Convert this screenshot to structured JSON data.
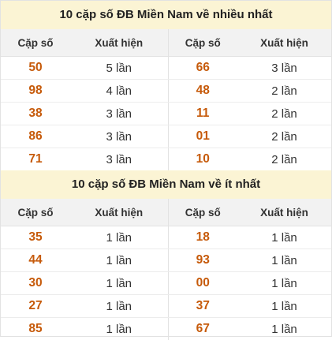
{
  "most": {
    "title": "10 cặp số ĐB Miền Nam về nhiều nhất",
    "headers": [
      "Cặp số",
      "Xuất hiện",
      "Cặp số",
      "Xuất hiện"
    ],
    "rows": [
      {
        "num_a": "50",
        "cnt_a": "5 lần",
        "num_b": "66",
        "cnt_b": "3 lần"
      },
      {
        "num_a": "98",
        "cnt_a": "4 lần",
        "num_b": "48",
        "cnt_b": "2 lần"
      },
      {
        "num_a": "38",
        "cnt_a": "3 lần",
        "num_b": "11",
        "cnt_b": "2 lần"
      },
      {
        "num_a": "86",
        "cnt_a": "3 lần",
        "num_b": "01",
        "cnt_b": "2 lần"
      },
      {
        "num_a": "71",
        "cnt_a": "3 lần",
        "num_b": "10",
        "cnt_b": "2 lần"
      }
    ]
  },
  "least": {
    "title": "10 cặp số ĐB Miền Nam về ít nhất",
    "headers": [
      "Cặp số",
      "Xuất hiện",
      "Cặp số",
      "Xuất hiện"
    ],
    "rows": [
      {
        "num_a": "35",
        "cnt_a": "1 lần",
        "num_b": "18",
        "cnt_b": "1 lần"
      },
      {
        "num_a": "44",
        "cnt_a": "1 lần",
        "num_b": "93",
        "cnt_b": "1 lần"
      },
      {
        "num_a": "30",
        "cnt_a": "1 lần",
        "num_b": "00",
        "cnt_b": "1 lần"
      },
      {
        "num_a": "27",
        "cnt_a": "1 lần",
        "num_b": "37",
        "cnt_b": "1 lần"
      },
      {
        "num_a": "85",
        "cnt_a": "1 lần",
        "num_b": "67",
        "cnt_b": "1 lần"
      }
    ]
  },
  "colors": {
    "title_bg": "#fbf4d4",
    "header_bg": "#f2f2f2",
    "number_text": "#c65a0a"
  }
}
